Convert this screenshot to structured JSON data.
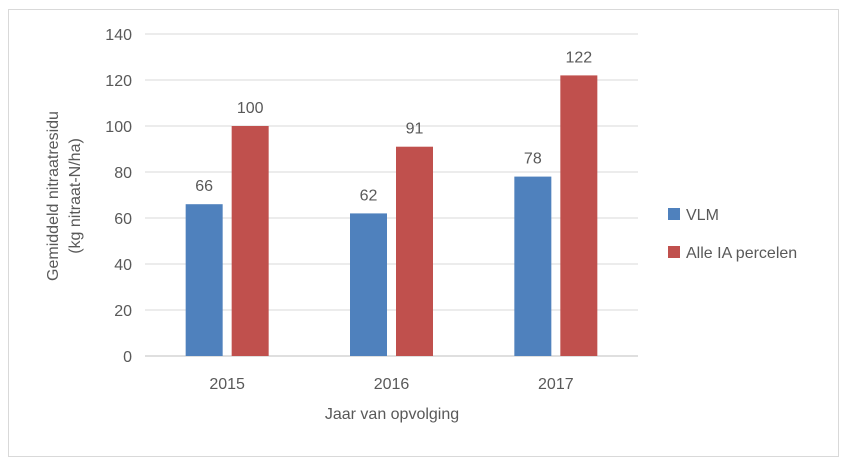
{
  "chart_data": {
    "type": "bar",
    "title": "",
    "xlabel": "Jaar van opvolging",
    "ylabel_lines": [
      "Gemiddeld nitraatresidu",
      "(kg nitraat-N/ha)"
    ],
    "categories": [
      "2015",
      "2016",
      "2017"
    ],
    "ylim": [
      0,
      140
    ],
    "yticks": [
      0,
      20,
      40,
      60,
      80,
      100,
      120,
      140
    ],
    "grid": true,
    "legend_position": "right",
    "series": [
      {
        "name": "VLM",
        "color": "#4F81BD",
        "values": [
          66,
          62,
          78
        ]
      },
      {
        "name": "Alle IA percelen",
        "color": "#C0504D",
        "values": [
          100,
          91,
          122
        ]
      }
    ]
  }
}
